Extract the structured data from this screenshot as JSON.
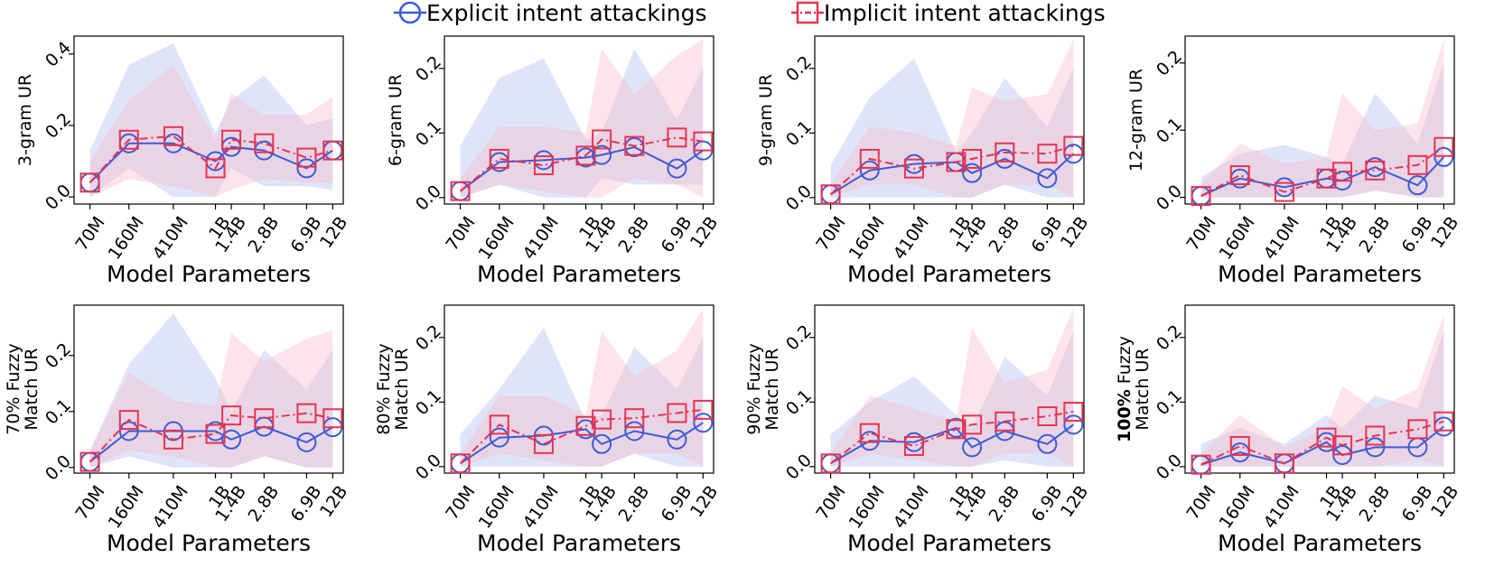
{
  "legend": {
    "explicit_label": "Explicit intent attackings",
    "implicit_label": "Implicit intent attackings"
  },
  "colors": {
    "explicit": "#3b5bd6",
    "implicit": "#e8334f",
    "explicit_band": "#b9c3f2",
    "implicit_band": "#f7bccb"
  },
  "chart_data": [
    {
      "type": "line",
      "title": "",
      "ylabel": "3-gram UR",
      "ylabel_bold_part": "",
      "xlabel": "Model Parameters",
      "x_tick_labels": [
        "70M",
        "160M",
        "410M",
        "1B",
        "1.4B",
        "2.8B",
        "6.9B",
        "12B"
      ],
      "x": [
        0.07,
        0.16,
        0.41,
        1.0,
        1.4,
        2.8,
        6.9,
        12
      ],
      "ylim": [
        -0.02,
        0.45
      ],
      "yticks": [
        0.0,
        0.2,
        0.4
      ],
      "series": [
        {
          "name": "Explicit intent attackings",
          "values": [
            0.04,
            0.15,
            0.15,
            0.1,
            0.14,
            0.13,
            0.08,
            0.13
          ],
          "band_low": [
            0.0,
            0.08,
            0.0,
            0.0,
            0.08,
            0.03,
            0.03,
            0.02
          ],
          "band_high": [
            0.13,
            0.37,
            0.43,
            0.18,
            0.27,
            0.34,
            0.2,
            0.22
          ]
        },
        {
          "name": "Implicit intent attackings",
          "values": [
            0.04,
            0.16,
            0.17,
            0.08,
            0.16,
            0.15,
            0.11,
            0.13
          ],
          "band_low": [
            0.0,
            0.05,
            0.03,
            0.0,
            0.02,
            0.05,
            0.04,
            0.04
          ],
          "band_high": [
            0.1,
            0.27,
            0.37,
            0.16,
            0.29,
            0.23,
            0.23,
            0.28
          ]
        }
      ]
    },
    {
      "type": "line",
      "title": "",
      "ylabel": "6-gram UR",
      "ylabel_bold_part": "",
      "xlabel": "Model Parameters",
      "x_tick_labels": [
        "70M",
        "160M",
        "410M",
        "1B",
        "1.4B",
        "2.8B",
        "6.9B",
        "12B"
      ],
      "x": [
        0.07,
        0.16,
        0.41,
        1.0,
        1.4,
        2.8,
        6.9,
        12
      ],
      "ylim": [
        -0.01,
        0.25
      ],
      "yticks": [
        0.0,
        0.1,
        0.2
      ],
      "series": [
        {
          "name": "Explicit intent attackings",
          "values": [
            0.01,
            0.055,
            0.058,
            0.062,
            0.066,
            0.078,
            0.045,
            0.073
          ],
          "band_low": [
            0.0,
            0.02,
            0.0,
            0.0,
            0.03,
            0.02,
            0.02,
            0.02
          ],
          "band_high": [
            0.08,
            0.185,
            0.215,
            0.09,
            0.1,
            0.23,
            0.12,
            0.2
          ]
        },
        {
          "name": "Implicit intent attackings",
          "values": [
            0.01,
            0.06,
            0.05,
            0.065,
            0.09,
            0.08,
            0.093,
            0.087
          ],
          "band_low": [
            0.0,
            0.02,
            0.01,
            0.0,
            0.0,
            0.03,
            0.02,
            0.0
          ],
          "band_high": [
            0.03,
            0.11,
            0.11,
            0.1,
            0.23,
            0.16,
            0.22,
            0.245
          ]
        }
      ]
    },
    {
      "type": "line",
      "title": "",
      "ylabel": "9-gram UR",
      "ylabel_bold_part": "",
      "xlabel": "Model Parameters",
      "x_tick_labels": [
        "70M",
        "160M",
        "410M",
        "1B",
        "1.4B",
        "2.8B",
        "6.9B",
        "12B"
      ],
      "x": [
        0.07,
        0.16,
        0.41,
        1.0,
        1.4,
        2.8,
        6.9,
        12
      ],
      "ylim": [
        -0.01,
        0.25
      ],
      "yticks": [
        0.0,
        0.1,
        0.2
      ],
      "series": [
        {
          "name": "Explicit intent attackings",
          "values": [
            0.005,
            0.042,
            0.052,
            0.055,
            0.038,
            0.06,
            0.03,
            0.068
          ],
          "band_low": [
            0.0,
            0.0,
            0.0,
            0.0,
            0.0,
            0.02,
            0.0,
            0.0
          ],
          "band_high": [
            0.05,
            0.155,
            0.215,
            0.07,
            0.1,
            0.185,
            0.11,
            0.2
          ]
        },
        {
          "name": "Implicit intent attackings",
          "values": [
            0.005,
            0.06,
            0.045,
            0.055,
            0.06,
            0.07,
            0.068,
            0.08
          ],
          "band_low": [
            0.0,
            0.02,
            0.02,
            0.0,
            0.0,
            0.02,
            0.02,
            0.0
          ],
          "band_high": [
            0.02,
            0.11,
            0.1,
            0.08,
            0.17,
            0.15,
            0.16,
            0.245
          ]
        }
      ]
    },
    {
      "type": "line",
      "title": "",
      "ylabel": "12-gram UR",
      "ylabel_bold_part": "",
      "xlabel": "Model Parameters",
      "x_tick_labels": [
        "70M",
        "160M",
        "410M",
        "1B",
        "1.4B",
        "2.8B",
        "6.9B",
        "12B"
      ],
      "x": [
        0.07,
        0.16,
        0.41,
        1.0,
        1.4,
        2.8,
        6.9,
        12
      ],
      "ylim": [
        -0.01,
        0.24
      ],
      "yticks": [
        0.0,
        0.1,
        0.2
      ],
      "series": [
        {
          "name": "Explicit intent attackings",
          "values": [
            0.002,
            0.028,
            0.015,
            0.028,
            0.025,
            0.045,
            0.018,
            0.06
          ],
          "band_low": [
            0.0,
            0.0,
            0.0,
            0.0,
            0.0,
            0.01,
            0.0,
            0.0
          ],
          "band_high": [
            0.03,
            0.065,
            0.078,
            0.06,
            0.05,
            0.155,
            0.08,
            0.2
          ]
        },
        {
          "name": "Implicit intent attackings",
          "values": [
            0.002,
            0.033,
            0.008,
            0.028,
            0.038,
            0.04,
            0.048,
            0.075
          ],
          "band_low": [
            0.0,
            0.0,
            0.0,
            0.0,
            0.0,
            0.01,
            0.0,
            0.0
          ],
          "band_high": [
            0.02,
            0.08,
            0.05,
            0.06,
            0.155,
            0.1,
            0.11,
            0.235
          ]
        }
      ]
    },
    {
      "type": "line",
      "title": "",
      "ylabel": "70% Fuzzy\nMatch UR",
      "ylabel_bold_part": "",
      "xlabel": "Model Parameters",
      "x_tick_labels": [
        "70M",
        "160M",
        "410M",
        "1B",
        "1.4B",
        "2.8B",
        "6.9B",
        "12B"
      ],
      "x": [
        0.07,
        0.16,
        0.41,
        1.0,
        1.4,
        2.8,
        6.9,
        12
      ],
      "ylim": [
        -0.01,
        0.29
      ],
      "yticks": [
        0.0,
        0.1,
        0.2
      ],
      "series": [
        {
          "name": "Explicit intent attackings",
          "values": [
            0.01,
            0.065,
            0.065,
            0.065,
            0.05,
            0.073,
            0.045,
            0.072
          ],
          "band_low": [
            0.0,
            0.02,
            0.0,
            0.0,
            0.0,
            0.02,
            0.0,
            0.0
          ],
          "band_high": [
            0.03,
            0.185,
            0.275,
            0.16,
            0.1,
            0.21,
            0.14,
            0.21
          ]
        },
        {
          "name": "Implicit intent attackings",
          "values": [
            0.01,
            0.085,
            0.05,
            0.06,
            0.093,
            0.088,
            0.097,
            0.088
          ],
          "band_low": [
            0.0,
            0.03,
            0.02,
            0.0,
            0.0,
            0.02,
            0.0,
            0.0
          ],
          "band_high": [
            0.03,
            0.17,
            0.12,
            0.11,
            0.24,
            0.19,
            0.23,
            0.245
          ]
        }
      ]
    },
    {
      "type": "line",
      "title": "",
      "ylabel": "80% Fuzzy\nMatch UR",
      "ylabel_bold_part": "",
      "xlabel": "Model Parameters",
      "x_tick_labels": [
        "70M",
        "160M",
        "410M",
        "1B",
        "1.4B",
        "2.8B",
        "6.9B",
        "12B"
      ],
      "x": [
        0.07,
        0.16,
        0.41,
        1.0,
        1.4,
        2.8,
        6.9,
        12
      ],
      "ylim": [
        -0.01,
        0.25
      ],
      "yticks": [
        0.0,
        0.1,
        0.2
      ],
      "series": [
        {
          "name": "Explicit intent attackings",
          "values": [
            0.005,
            0.045,
            0.048,
            0.058,
            0.035,
            0.055,
            0.042,
            0.068
          ],
          "band_low": [
            0.0,
            0.0,
            0.0,
            0.0,
            0.0,
            0.02,
            0.0,
            0.0
          ],
          "band_high": [
            0.05,
            0.12,
            0.215,
            0.07,
            0.08,
            0.185,
            0.12,
            0.2
          ]
        },
        {
          "name": "Implicit intent attackings",
          "values": [
            0.005,
            0.065,
            0.035,
            0.063,
            0.073,
            0.075,
            0.083,
            0.088
          ],
          "band_low": [
            0.0,
            0.02,
            0.01,
            0.0,
            0.0,
            0.02,
            0.02,
            0.0
          ],
          "band_high": [
            0.02,
            0.11,
            0.11,
            0.08,
            0.21,
            0.14,
            0.18,
            0.245
          ]
        }
      ]
    },
    {
      "type": "line",
      "title": "",
      "ylabel": "90% Fuzzy\nMatch UR",
      "ylabel_bold_part": "",
      "xlabel": "Model Parameters",
      "x_tick_labels": [
        "70M",
        "160M",
        "410M",
        "1B",
        "1.4B",
        "2.8B",
        "6.9B",
        "12B"
      ],
      "x": [
        0.07,
        0.16,
        0.41,
        1.0,
        1.4,
        2.8,
        6.9,
        12
      ],
      "ylim": [
        -0.01,
        0.25
      ],
      "yticks": [
        0.0,
        0.1,
        0.2
      ],
      "series": [
        {
          "name": "Explicit intent attackings",
          "values": [
            0.005,
            0.04,
            0.038,
            0.06,
            0.03,
            0.055,
            0.035,
            0.065
          ],
          "band_low": [
            0.0,
            0.0,
            0.0,
            0.0,
            0.0,
            0.01,
            0.0,
            0.0
          ],
          "band_high": [
            0.05,
            0.1,
            0.14,
            0.08,
            0.06,
            0.17,
            0.11,
            0.21
          ]
        },
        {
          "name": "Implicit intent attackings",
          "values": [
            0.005,
            0.052,
            0.032,
            0.058,
            0.065,
            0.07,
            0.078,
            0.085
          ],
          "band_low": [
            0.0,
            0.02,
            0.01,
            0.0,
            0.0,
            0.02,
            0.02,
            0.0
          ],
          "band_high": [
            0.02,
            0.11,
            0.09,
            0.07,
            0.215,
            0.13,
            0.15,
            0.245
          ]
        }
      ]
    },
    {
      "type": "line",
      "title": "",
      "ylabel": "100% Fuzzy\nMatch UR",
      "ylabel_bold_part": "100%",
      "xlabel": "Model Parameters",
      "x_tick_labels": [
        "70M",
        "160M",
        "410M",
        "1B",
        "1.4B",
        "2.8B",
        "6.9B",
        "12B"
      ],
      "x": [
        0.07,
        0.16,
        0.41,
        1.0,
        1.4,
        2.8,
        6.9,
        12
      ],
      "ylim": [
        -0.01,
        0.25
      ],
      "yticks": [
        0.0,
        0.1,
        0.2
      ],
      "series": [
        {
          "name": "Explicit intent attackings",
          "values": [
            0.003,
            0.022,
            0.005,
            0.038,
            0.018,
            0.03,
            0.03,
            0.062
          ],
          "band_low": [
            0.0,
            0.0,
            0.0,
            0.0,
            0.0,
            0.0,
            0.0,
            0.0
          ],
          "band_high": [
            0.035,
            0.06,
            0.035,
            0.08,
            0.06,
            0.11,
            0.09,
            0.21
          ]
        },
        {
          "name": "Implicit intent attackings",
          "values": [
            0.003,
            0.032,
            0.005,
            0.045,
            0.033,
            0.048,
            0.058,
            0.07
          ],
          "band_low": [
            0.0,
            0.0,
            0.0,
            0.0,
            0.0,
            0.0,
            0.01,
            0.0
          ],
          "band_high": [
            0.02,
            0.08,
            0.03,
            0.06,
            0.125,
            0.09,
            0.12,
            0.235
          ]
        }
      ]
    }
  ]
}
